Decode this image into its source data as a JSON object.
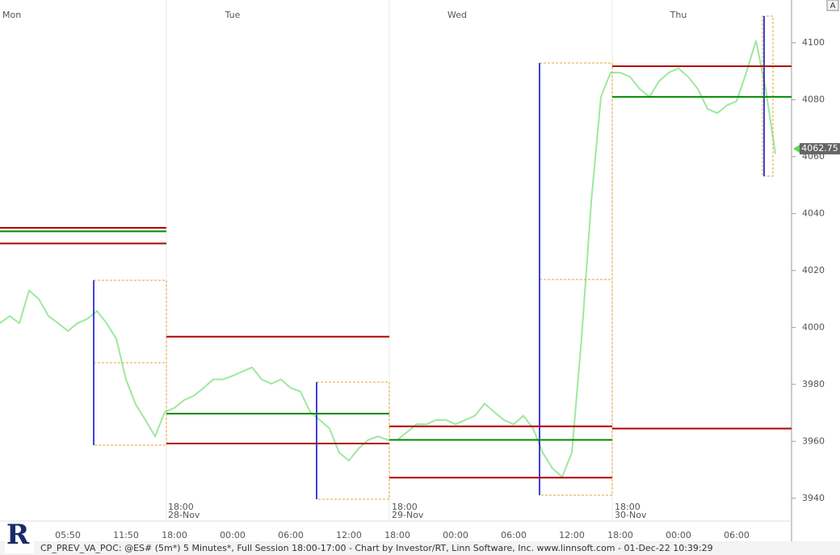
{
  "chart_data": {
    "type": "line",
    "title": "CP_PREV_VA_POC: @ES# (5m*) 5 Minutes*, Full Session 18:00-17:00 - Chart by Investor/RT, Linn Software, Inc. www.linnsoft.com - 01-Dec-22 10:39:29",
    "logo": "R",
    "button": "A",
    "day_labels": [
      "Mon",
      "Tue",
      "Wed",
      "Thu"
    ],
    "session_starts": [
      {
        "time": "18:00",
        "date": "28-Nov"
      },
      {
        "time": "18:00",
        "date": "29-Nov"
      },
      {
        "time": "18:00",
        "date": "30-Nov"
      }
    ],
    "categories": [
      null,
      null,
      null,
      null,
      null,
      null,
      null,
      "05:50",
      null,
      null,
      null,
      null,
      null,
      "11:50",
      null,
      null,
      null,
      null,
      "18:00",
      null,
      null,
      null,
      null,
      null,
      "00:00",
      null,
      null,
      null,
      null,
      null,
      "06:00",
      null,
      null,
      null,
      null,
      null,
      "12:00",
      null,
      null,
      null,
      null,
      "18:00",
      null,
      null,
      null,
      null,
      null,
      "00:00",
      null,
      null,
      null,
      null,
      null,
      "06:00",
      null,
      null,
      null,
      null,
      null,
      "12:00",
      null,
      null,
      null,
      null,
      "18:00",
      null,
      null,
      null,
      null,
      null,
      "00:00",
      null,
      null,
      null,
      null,
      null,
      "06:00",
      null,
      null,
      null,
      null
    ],
    "values": [
      4001.5,
      4004,
      4001.5,
      4013,
      4010,
      4004,
      4001.5,
      3998.75,
      4001.5,
      4003,
      4005.75,
      4001.5,
      3996,
      3981.75,
      3973,
      3967.5,
      3961.75,
      3970.25,
      3971.75,
      3974.5,
      3976,
      3978.75,
      3981.75,
      3981.75,
      3983,
      3984.5,
      3986,
      3981.75,
      3980.25,
      3981.75,
      3978.75,
      3977.5,
      3970.25,
      3967.5,
      3964.5,
      3956,
      3953.25,
      3957.5,
      3960.5,
      3961.75,
      3960.5,
      3960.5,
      3963.25,
      3966,
      3966,
      3967.5,
      3967.5,
      3966,
      3967.5,
      3969,
      3973.25,
      3970.25,
      3967.5,
      3966,
      3969,
      3964.5,
      3956,
      3950.5,
      3947.5,
      3956,
      3996,
      4044,
      4081,
      4089.5,
      4089.5,
      4088,
      4083.75,
      4081,
      4086.5,
      4089.5,
      4091,
      4088,
      4083.75,
      4076.75,
      4075.25,
      4078,
      4079.5,
      4089.5,
      4100.75,
      4083.75,
      4061
    ],
    "color": "#9ee89e",
    "value_area_levels": [
      [
        4035,
        4033.75,
        4029.5
      ],
      [
        3996.75,
        3969.75,
        3959.25
      ],
      [
        3965.25,
        3960.5,
        3947.25
      ],
      [
        4091.75,
        4081,
        3964.5
      ]
    ],
    "level_colors": [
      "#b00000",
      "#008a00",
      "#b00000"
    ],
    "last_price": 4062.75,
    "ylim": [
      3932,
      4115
    ],
    "yticks": [
      3940,
      3960,
      3980,
      4000,
      4020,
      4040,
      4060,
      4080,
      4100
    ]
  }
}
